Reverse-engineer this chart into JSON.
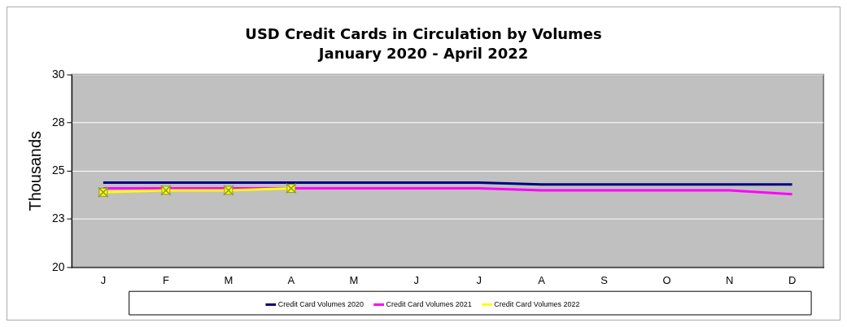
{
  "chart_data": {
    "type": "line",
    "title": "USD Credit Cards in Circulation by Volumes",
    "subtitle": "January 2020 - April 2022",
    "ylabel": "Thousands",
    "categories": [
      "J",
      "F",
      "M",
      "A",
      "M",
      "J",
      "J",
      "A",
      "S",
      "O",
      "N",
      "D"
    ],
    "series": [
      {
        "name": "Credit Card Volumes 2020",
        "color": "#000080",
        "marker": "none",
        "values": [
          24.4,
          24.4,
          24.4,
          24.4,
          24.4,
          24.4,
          24.4,
          24.3,
          24.3,
          24.3,
          24.3,
          24.3
        ]
      },
      {
        "name": "Credit Card Volumes 2021",
        "color": "#ff00ff",
        "marker": "none",
        "values": [
          24.1,
          24.1,
          24.1,
          24.1,
          24.1,
          24.1,
          24.1,
          24.0,
          24.0,
          24.0,
          24.0,
          23.8
        ]
      },
      {
        "name": "Credit Card Volumes 2022",
        "color": "#ffff00",
        "marker": "square",
        "values": [
          23.9,
          24.0,
          24.0,
          24.1,
          null,
          null,
          null,
          null,
          null,
          null,
          null,
          null
        ]
      }
    ],
    "ylim": [
      20,
      30
    ],
    "yticks": [
      20,
      {
        "value": 22.5,
        "label": "23"
      },
      25,
      {
        "value": 27.5,
        "label": "28"
      },
      30
    ],
    "grid": "y",
    "legend": "bottom"
  }
}
